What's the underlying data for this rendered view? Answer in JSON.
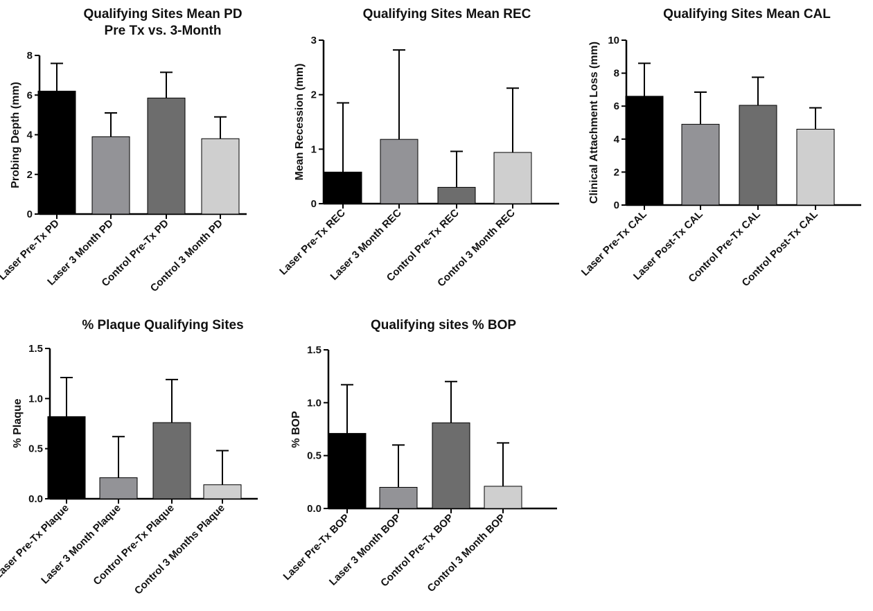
{
  "chart_data": [
    {
      "type": "bar",
      "title": "Qualifying Sites Mean PD",
      "subtitle": "Pre Tx vs. 3-Month",
      "ylabel": "Probing Depth (mm)",
      "ylim": [
        0,
        8
      ],
      "yticks": [
        0,
        2,
        4,
        6,
        8
      ],
      "ytick_labels": [
        "0",
        "2",
        "4",
        "6",
        "8"
      ],
      "categories": [
        "Laser Pre-Tx PD",
        "Laser 3 Month PD",
        "Control Pre-Tx PD",
        "Control 3 Month PD"
      ],
      "values": [
        6.2,
        3.9,
        5.85,
        3.8
      ],
      "errors": [
        1.4,
        1.2,
        1.3,
        1.1
      ],
      "colors": [
        "#000000",
        "#939397",
        "#6d6d6d",
        "#cfcfcf"
      ]
    },
    {
      "type": "bar",
      "title": "Qualifying Sites Mean REC",
      "ylabel": "Mean Recession (mm)",
      "ylim": [
        0,
        3
      ],
      "yticks": [
        0,
        1,
        2,
        3
      ],
      "ytick_labels": [
        "0",
        "1",
        "2",
        "3"
      ],
      "categories": [
        "Laser Pre-Tx REC",
        "Laser 3 Month REC",
        "Control Pre-Tx REC",
        "Control 3 Month REC"
      ],
      "values": [
        0.58,
        1.18,
        0.3,
        0.94
      ],
      "errors": [
        1.27,
        1.64,
        0.66,
        1.18
      ],
      "colors": [
        "#000000",
        "#939397",
        "#6d6d6d",
        "#cfcfcf"
      ]
    },
    {
      "type": "bar",
      "title": "Qualifying Sites Mean CAL",
      "ylabel": "Clinical Attachment Loss (mm)",
      "ylim": [
        0,
        10
      ],
      "yticks": [
        0,
        2,
        4,
        6,
        8,
        10
      ],
      "ytick_labels": [
        "0",
        "2",
        "4",
        "6",
        "8",
        "10"
      ],
      "categories": [
        "Laser Pre-Tx CAL",
        "Laser Post-Tx CAL",
        "Control Pre-Tx CAL",
        "Control Post-Tx CAL"
      ],
      "values": [
        6.6,
        4.9,
        6.05,
        4.6
      ],
      "errors": [
        2.0,
        1.95,
        1.7,
        1.3
      ],
      "colors": [
        "#000000",
        "#939397",
        "#6d6d6d",
        "#cfcfcf"
      ]
    },
    {
      "type": "bar",
      "title": "% Plaque Qualifying Sites",
      "ylabel": "% Plaque",
      "ylim": [
        0,
        1.5
      ],
      "yticks": [
        0,
        0.5,
        1.0,
        1.5
      ],
      "ytick_labels": [
        "0.0",
        "0.5",
        "1.0",
        "1.5"
      ],
      "categories": [
        "Laser Pre-Tx Plaque",
        "Laser 3 Month Plaque",
        "Control Pre-Tx Plaque",
        "Control 3 Months Plaque"
      ],
      "values": [
        0.82,
        0.21,
        0.76,
        0.14
      ],
      "errors": [
        0.39,
        0.41,
        0.43,
        0.34
      ],
      "colors": [
        "#000000",
        "#939397",
        "#6d6d6d",
        "#cfcfcf"
      ]
    },
    {
      "type": "bar",
      "title": "Qualifying sites % BOP",
      "ylabel": "% BOP",
      "ylim": [
        0,
        1.5
      ],
      "yticks": [
        0,
        0.5,
        1.0,
        1.5
      ],
      "ytick_labels": [
        "0.0",
        "0.5",
        "1.0",
        "1.5"
      ],
      "categories": [
        "Laser Pre-Tx BOP",
        "Laser 3 Month BOP",
        "Control Pre-Tx BOP",
        "Control 3 Month BOP"
      ],
      "values": [
        0.71,
        0.2,
        0.81,
        0.21
      ],
      "errors": [
        0.46,
        0.4,
        0.39,
        0.41
      ],
      "colors": [
        "#000000",
        "#939397",
        "#6d6d6d",
        "#cfcfcf"
      ]
    }
  ]
}
